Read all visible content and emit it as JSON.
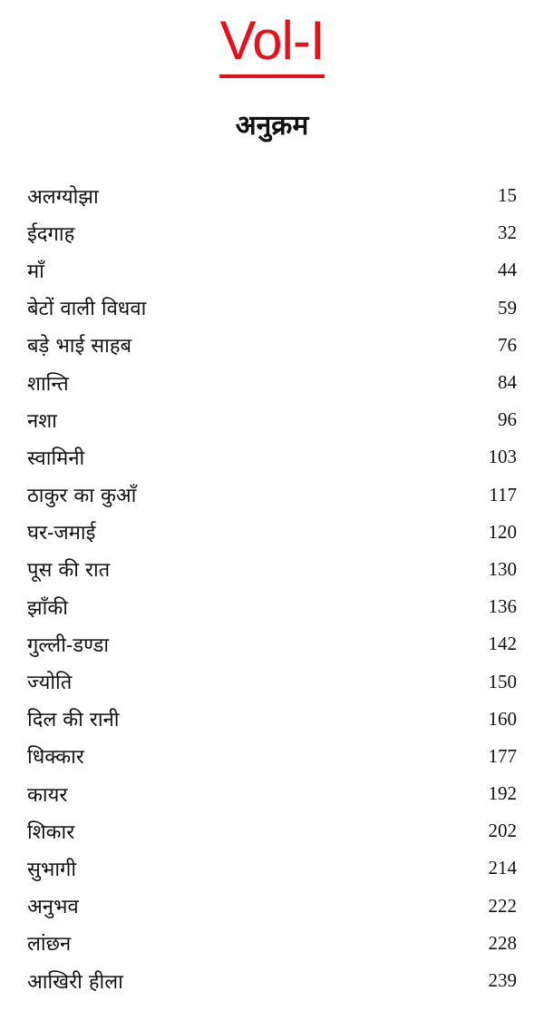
{
  "volume": "Vol-I",
  "title": "अनुक्रम",
  "entries": [
    {
      "title": "अलग्योझा",
      "page": "15"
    },
    {
      "title": "ईदगाह",
      "page": "32"
    },
    {
      "title": "माँ",
      "page": "44"
    },
    {
      "title": "बेटों वाली विधवा",
      "page": "59"
    },
    {
      "title": "बड़े भाई साहब",
      "page": "76"
    },
    {
      "title": "शान्ति",
      "page": "84"
    },
    {
      "title": "नशा",
      "page": "96"
    },
    {
      "title": "स्वामिनी",
      "page": "103"
    },
    {
      "title": "ठाकुर का कुआँ",
      "page": "117"
    },
    {
      "title": "घर-जमाई",
      "page": "120"
    },
    {
      "title": "पूस की रात",
      "page": "130"
    },
    {
      "title": "झाँकी",
      "page": "136"
    },
    {
      "title": "गुल्ली-डण्डा",
      "page": "142"
    },
    {
      "title": "ज्योति",
      "page": "150"
    },
    {
      "title": "दिल की रानी",
      "page": "160"
    },
    {
      "title": "धिक्कार",
      "page": "177"
    },
    {
      "title": "कायर",
      "page": "192"
    },
    {
      "title": "शिकार",
      "page": "202"
    },
    {
      "title": "सुभागी",
      "page": "214"
    },
    {
      "title": "अनुभव",
      "page": "222"
    },
    {
      "title": "लांछन",
      "page": "228"
    },
    {
      "title": "आखिरी हीला",
      "page": "239"
    }
  ],
  "colors": {
    "volume": "#e8101a",
    "text": "#111111"
  }
}
